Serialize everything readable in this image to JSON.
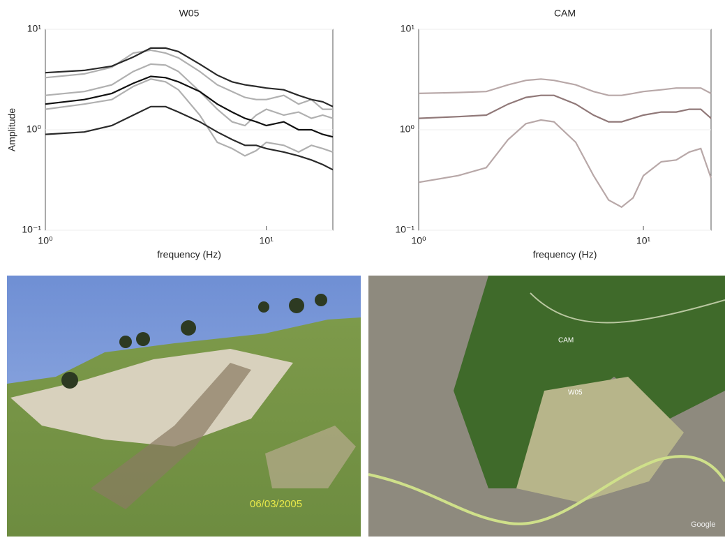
{
  "chart_data": [
    {
      "type": "line",
      "title": "W05",
      "x_label": "frequency (Hz)",
      "y_label": "Amplitude",
      "log_x": true,
      "log_y": true,
      "xlim": [
        1,
        20
      ],
      "ylim": [
        0.1,
        10
      ],
      "xticks": [
        {
          "value": 1,
          "label": "10⁰"
        },
        {
          "value": 10,
          "label": "10¹"
        }
      ],
      "yticks": [
        {
          "value": 0.1,
          "label": "10⁻¹"
        },
        {
          "value": 1,
          "label": "10⁰"
        },
        {
          "value": 10,
          "label": "10¹"
        }
      ],
      "x": [
        1,
        1.5,
        2,
        2.5,
        3,
        3.5,
        4,
        5,
        6,
        7,
        8,
        9,
        10,
        12,
        14,
        16,
        18,
        20
      ],
      "series": [
        {
          "color": "#b0b0b0",
          "values": [
            3.3,
            3.6,
            4.2,
            5.8,
            6.2,
            5.8,
            5.2,
            3.8,
            2.8,
            2.4,
            2.1,
            2.0,
            2.0,
            2.2,
            1.8,
            2.0,
            1.6,
            1.6
          ]
        },
        {
          "color": "#b0b0b0",
          "values": [
            2.2,
            2.4,
            2.8,
            3.8,
            4.5,
            4.4,
            3.8,
            2.4,
            1.6,
            1.2,
            1.1,
            1.4,
            1.6,
            1.4,
            1.5,
            1.3,
            1.4,
            1.3
          ]
        },
        {
          "color": "#b0b0b0",
          "values": [
            1.6,
            1.8,
            2.0,
            2.7,
            3.2,
            3.0,
            2.5,
            1.4,
            0.75,
            0.65,
            0.55,
            0.62,
            0.75,
            0.7,
            0.6,
            0.7,
            0.65,
            0.6
          ]
        },
        {
          "color": "#2a2a2a",
          "values": [
            3.7,
            3.9,
            4.3,
            5.3,
            6.5,
            6.5,
            6.0,
            4.5,
            3.5,
            3.0,
            2.8,
            2.7,
            2.6,
            2.5,
            2.2,
            2.0,
            1.9,
            1.7
          ]
        },
        {
          "color": "#111111",
          "values": [
            1.8,
            2.0,
            2.3,
            2.9,
            3.4,
            3.3,
            3.0,
            2.4,
            1.8,
            1.5,
            1.3,
            1.2,
            1.1,
            1.2,
            1.0,
            1.0,
            0.9,
            0.85
          ]
        },
        {
          "color": "#2a2a2a",
          "values": [
            0.9,
            0.95,
            1.1,
            1.4,
            1.7,
            1.7,
            1.5,
            1.2,
            0.95,
            0.8,
            0.7,
            0.7,
            0.65,
            0.6,
            0.55,
            0.5,
            0.45,
            0.4
          ]
        }
      ]
    },
    {
      "type": "line",
      "title": "CAM",
      "x_label": "frequency (Hz)",
      "log_x": true,
      "log_y": true,
      "xlim": [
        1,
        20
      ],
      "ylim": [
        0.1,
        10
      ],
      "xticks": [
        {
          "value": 1,
          "label": "10⁰"
        },
        {
          "value": 10,
          "label": "10¹"
        }
      ],
      "yticks": [
        {
          "value": 0.1,
          "label": "10⁻¹"
        },
        {
          "value": 1,
          "label": "10⁰"
        },
        {
          "value": 10,
          "label": "10¹"
        }
      ],
      "x": [
        1,
        1.5,
        2,
        2.5,
        3,
        3.5,
        4,
        5,
        6,
        7,
        8,
        9,
        10,
        12,
        14,
        16,
        18,
        20
      ],
      "series": [
        {
          "color": "#b8a8a8",
          "values": [
            2.3,
            2.35,
            2.4,
            2.8,
            3.1,
            3.2,
            3.1,
            2.8,
            2.4,
            2.2,
            2.2,
            2.3,
            2.4,
            2.5,
            2.6,
            2.6,
            2.6,
            2.3
          ]
        },
        {
          "color": "#907878",
          "values": [
            1.3,
            1.35,
            1.4,
            1.8,
            2.1,
            2.2,
            2.2,
            1.8,
            1.4,
            1.2,
            1.2,
            1.3,
            1.4,
            1.5,
            1.5,
            1.6,
            1.6,
            1.3
          ]
        },
        {
          "color": "#b8a8a8",
          "values": [
            0.3,
            0.35,
            0.42,
            0.8,
            1.15,
            1.25,
            1.2,
            0.75,
            0.35,
            0.2,
            0.17,
            0.21,
            0.35,
            0.48,
            0.5,
            0.6,
            0.65,
            0.33
          ]
        }
      ]
    }
  ],
  "photo": {
    "date": "06/03/2005"
  },
  "map": {
    "labels": [
      "CAM",
      "W05"
    ],
    "credit": "Google"
  }
}
